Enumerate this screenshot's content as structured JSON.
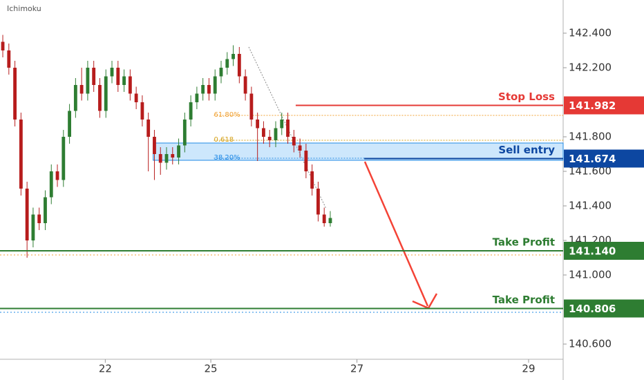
{
  "chart_data": {
    "type": "candlestick",
    "title": "Ichimoku",
    "x": [
      0,
      1,
      2,
      3,
      4,
      5,
      6,
      7,
      8,
      9,
      10,
      11,
      12,
      13,
      14,
      15,
      16,
      17,
      18,
      19,
      20,
      21,
      22,
      23,
      24,
      25,
      26,
      27,
      28,
      29,
      30,
      31,
      32,
      33,
      34,
      35,
      36,
      37,
      38,
      39,
      40,
      41,
      42,
      43,
      44,
      45,
      46,
      47,
      48,
      49,
      50,
      51,
      52,
      53,
      54
    ],
    "open": [
      142.35,
      142.3,
      142.2,
      141.9,
      141.5,
      141.2,
      141.35,
      141.3,
      141.45,
      141.6,
      141.55,
      141.8,
      141.95,
      142.1,
      142.05,
      142.2,
      142.1,
      141.95,
      142.15,
      142.2,
      142.1,
      142.15,
      142.05,
      142.0,
      141.9,
      141.8,
      141.7,
      141.65,
      141.7,
      141.68,
      141.75,
      141.9,
      142.0,
      142.05,
      142.1,
      142.05,
      142.15,
      142.2,
      142.25,
      142.28,
      142.15,
      142.05,
      141.9,
      141.85,
      141.8,
      141.78,
      141.85,
      141.9,
      141.8,
      141.75,
      141.72,
      141.6,
      141.5,
      141.35,
      141.3
    ],
    "high": [
      142.39,
      142.34,
      142.24,
      141.94,
      141.54,
      141.39,
      141.39,
      141.49,
      141.64,
      141.64,
      141.84,
      141.99,
      142.14,
      142.2,
      142.24,
      142.24,
      142.14,
      142.19,
      142.24,
      142.24,
      142.19,
      142.19,
      142.09,
      142.04,
      141.94,
      141.84,
      141.74,
      141.74,
      141.74,
      141.79,
      141.94,
      142.04,
      142.09,
      142.14,
      142.14,
      142.19,
      142.24,
      142.29,
      142.33,
      142.32,
      142.19,
      142.09,
      141.94,
      141.89,
      141.84,
      141.89,
      141.94,
      141.94,
      141.84,
      141.79,
      141.76,
      141.64,
      141.54,
      141.39,
      141.37
    ],
    "low": [
      142.26,
      142.16,
      141.86,
      141.46,
      141.1,
      141.16,
      141.26,
      141.26,
      141.41,
      141.51,
      141.51,
      141.76,
      141.91,
      142.01,
      142.01,
      142.06,
      141.91,
      141.91,
      142.11,
      142.06,
      142.06,
      142.01,
      141.96,
      141.86,
      141.6,
      141.55,
      141.58,
      141.61,
      141.64,
      141.64,
      141.71,
      141.86,
      141.96,
      142.01,
      142.01,
      142.01,
      142.11,
      142.16,
      142.21,
      142.11,
      142.01,
      141.86,
      141.66,
      141.76,
      141.74,
      141.74,
      141.81,
      141.76,
      141.71,
      141.68,
      141.56,
      141.46,
      141.31,
      141.28,
      141.28
    ],
    "close": [
      142.3,
      142.2,
      141.9,
      141.5,
      141.2,
      141.35,
      141.3,
      141.45,
      141.6,
      141.55,
      141.8,
      141.95,
      142.1,
      142.05,
      142.2,
      142.1,
      141.95,
      142.15,
      142.2,
      142.1,
      142.15,
      142.05,
      142.0,
      141.9,
      141.8,
      141.7,
      141.65,
      141.7,
      141.68,
      141.75,
      141.9,
      142.0,
      142.05,
      142.1,
      142.05,
      142.15,
      142.2,
      142.25,
      142.28,
      142.15,
      142.05,
      141.9,
      141.85,
      141.8,
      141.78,
      141.85,
      141.9,
      141.8,
      141.75,
      141.72,
      141.6,
      141.5,
      141.35,
      141.3,
      141.33
    ],
    "up_color": "#2e7d32",
    "down_color": "#b71c1c",
    "xlim": [
      -0.46,
      92.4
    ],
    "xticks": [
      {
        "value": 16.9,
        "label": "22"
      },
      {
        "value": 34.3,
        "label": "25"
      },
      {
        "value": 58.4,
        "label": "27"
      },
      {
        "value": 86.7,
        "label": "29"
      }
    ],
    "ylim": [
      140.392,
      142.592
    ],
    "yticks": [
      {
        "value": 142.4,
        "label": "142.400"
      },
      {
        "value": 142.2,
        "label": "142.200"
      },
      {
        "value": 141.8,
        "label": "141.800"
      },
      {
        "value": 141.6,
        "label": "141.600"
      },
      {
        "value": 141.4,
        "label": "141.400"
      },
      {
        "value": 141.2,
        "label": "141.200"
      },
      {
        "value": 141.0,
        "label": "141.000"
      },
      {
        "value": 140.6,
        "label": "140.600"
      }
    ],
    "zone": {
      "ymin": 141.664,
      "ymax": 141.764,
      "from": 24.8,
      "color": "#90caf9"
    },
    "fib_levels": [
      {
        "label": "61.80%",
        "value": 141.924,
        "color": "#f0a030",
        "from": 34.8
      },
      {
        "label": "0.618",
        "value": 141.78,
        "color": "#d4a017",
        "from": 34.8
      },
      {
        "label": "38.20%",
        "value": 141.676,
        "color": "#1e88e5",
        "from": 34.8
      }
    ],
    "dotted_levels": [
      {
        "value": 141.116,
        "color": "#f0a030"
      },
      {
        "value": 140.784,
        "color": "#1e88e5"
      }
    ],
    "levels": [
      {
        "name": "Stop Loss",
        "value": 141.982,
        "label": "141.982",
        "color": "#e53935",
        "from": 48.3
      },
      {
        "name": "Sell entry",
        "value": 141.674,
        "label": "141.674",
        "color": "#0d47a1",
        "from": 59.6
      },
      {
        "name": "Take Profit",
        "value": 141.14,
        "label": "141.140",
        "color": "#2e7d32",
        "from": -0.46
      },
      {
        "name": "Take Profit",
        "value": 140.806,
        "label": "140.806",
        "color": "#2e7d32",
        "from": -0.46
      }
    ]
  }
}
